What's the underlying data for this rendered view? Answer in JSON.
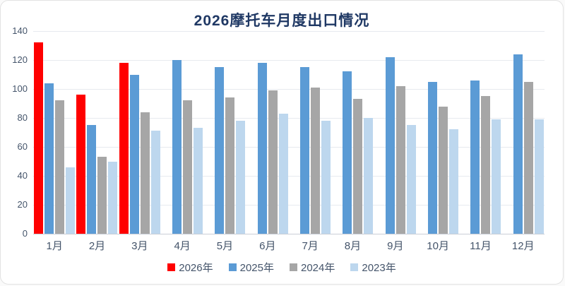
{
  "chart_data": {
    "type": "bar",
    "title": "2026摩托车月度出口情况",
    "categories": [
      "1月",
      "2月",
      "3月",
      "4月",
      "5月",
      "6月",
      "7月",
      "8月",
      "9月",
      "10月",
      "11月",
      "12月"
    ],
    "series": [
      {
        "name": "2026年",
        "color": "#FF0000",
        "values": [
          132,
          96,
          118,
          null,
          null,
          null,
          null,
          null,
          null,
          null,
          null,
          null
        ]
      },
      {
        "name": "2025年",
        "color": "#5B9BD5",
        "values": [
          104,
          75,
          110,
          120,
          115,
          118,
          115,
          112,
          122,
          105,
          106,
          124
        ]
      },
      {
        "name": "2024年",
        "color": "#A6A6A6",
        "values": [
          92,
          53,
          84,
          92,
          94,
          99,
          101,
          93,
          102,
          88,
          95,
          105
        ]
      },
      {
        "name": "2023年",
        "color": "#BDD7EE",
        "values": [
          46,
          50,
          71,
          73,
          78,
          83,
          78,
          80,
          75,
          72,
          79,
          79
        ]
      }
    ],
    "xlabel": "",
    "ylabel": "",
    "ylim": [
      0,
      140
    ],
    "yticks": [
      0,
      20,
      40,
      60,
      80,
      100,
      120,
      140
    ],
    "grid": true,
    "legend_position": "bottom"
  },
  "colors": {
    "title": "#1F3864",
    "axis_text": "#44546A",
    "gridline": "#e7eaef",
    "axis_line": "#c9ced6"
  }
}
